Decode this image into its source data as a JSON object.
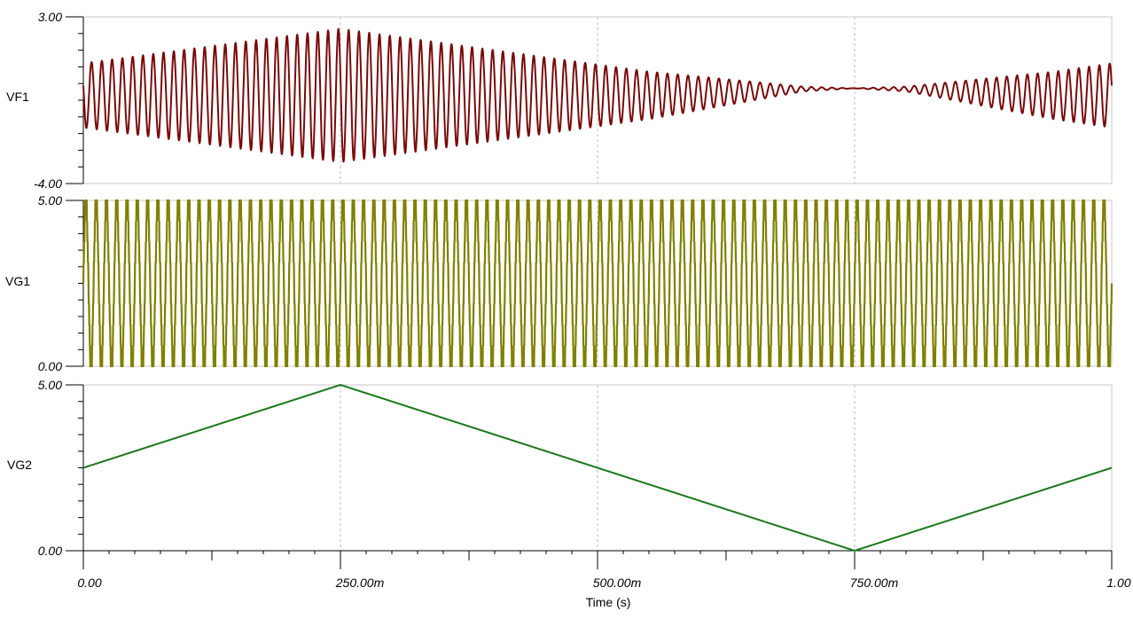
{
  "chart_data": {
    "type": "line",
    "xlabel": "Time (s)",
    "xlim": [
      0,
      1
    ],
    "x_ticks": [
      "0.00",
      "250.00m",
      "500.00m",
      "750.00m",
      "1.00"
    ],
    "x_tick_values": [
      0,
      0.25,
      0.5,
      0.75,
      1.0
    ],
    "grid": "vertical dashed at major x ticks",
    "panels": [
      {
        "name": "VF1",
        "color": "#7a0a0a",
        "ylim": [
          -4,
          3
        ],
        "y_ticks": [
          "3.00",
          "-4.00"
        ],
        "waveform": "sinusoid with triangular amplitude envelope",
        "frequency_hz": 100,
        "offset": -0.3,
        "envelope": {
          "t": [
            0,
            0.25,
            0.7,
            0.75,
            0.8,
            1.0
          ],
          "amplitude": [
            1.35,
            2.8,
            0.1,
            0,
            0.1,
            1.35
          ]
        }
      },
      {
        "name": "VG1",
        "color": "#808000",
        "ylim": [
          0,
          5
        ],
        "y_ticks": [
          "5.00",
          "0.00"
        ],
        "waveform": "stepped (quantized) sinusoid",
        "frequency_hz": 100,
        "min": 0,
        "max": 5,
        "levels": 9
      },
      {
        "name": "VG2",
        "color": "#1a7a1a",
        "ylim": [
          0,
          5
        ],
        "y_ticks": [
          "5.00",
          "0.00"
        ],
        "waveform": "triangle",
        "x": [
          0,
          0.25,
          0.75,
          1.0
        ],
        "y": [
          2.5,
          5.0,
          0.0,
          2.5
        ]
      }
    ]
  }
}
